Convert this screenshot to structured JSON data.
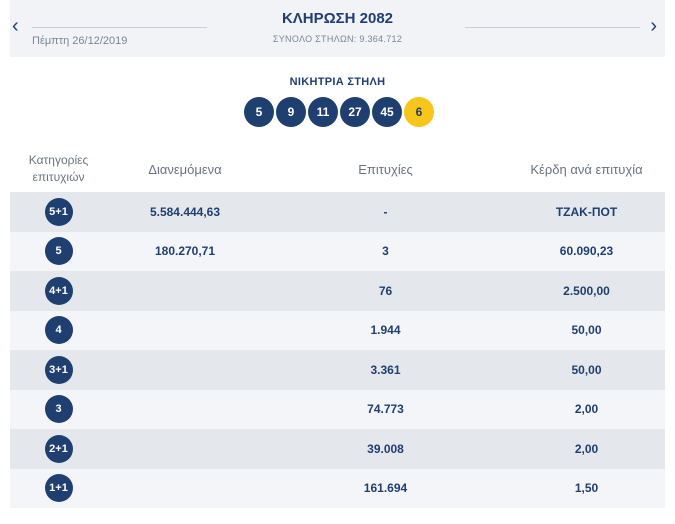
{
  "header": {
    "title": "ΚΛΗΡΩΣΗ 2082",
    "subtitle": "ΣΥΝΟΛΟ ΣΤΗΛΩΝ: 9.364.712",
    "date": "Πέμπτη 26/12/2019",
    "prev_icon": "‹",
    "next_icon": "›"
  },
  "winning": {
    "label": "ΝΙΚΗΤΡΙΑ ΣΤΗΛΗ",
    "numbers": [
      "5",
      "9",
      "11",
      "27",
      "45"
    ],
    "joker": "6"
  },
  "table": {
    "headers": {
      "category_line1": "Κατηγορίες",
      "category_line2": "επιτυχιών",
      "distributed": "Διανεμόμενα",
      "winners": "Επιτυχίες",
      "prize": "Κέρδη ανά επιτυχία"
    },
    "rows": [
      {
        "category": "5+1",
        "distributed": "5.584.444,63",
        "winners": "-",
        "prize": "ΤΖΑΚ-ΠΟΤ"
      },
      {
        "category": "5",
        "distributed": "180.270,71",
        "winners": "3",
        "prize": "60.090,23"
      },
      {
        "category": "4+1",
        "distributed": "",
        "winners": "76",
        "prize": "2.500,00"
      },
      {
        "category": "4",
        "distributed": "",
        "winners": "1.944",
        "prize": "50,00"
      },
      {
        "category": "3+1",
        "distributed": "",
        "winners": "3.361",
        "prize": "50,00"
      },
      {
        "category": "3",
        "distributed": "",
        "winners": "74.773",
        "prize": "2,00"
      },
      {
        "category": "2+1",
        "distributed": "",
        "winners": "39.008",
        "prize": "2,00"
      },
      {
        "category": "1+1",
        "distributed": "",
        "winners": "161.694",
        "prize": "1,50"
      }
    ]
  },
  "colors": {
    "primary": "#1e3f70",
    "joker": "#f7c61a",
    "row_alt": "#e4e7ec",
    "row_plain": "#f4f5f8"
  }
}
